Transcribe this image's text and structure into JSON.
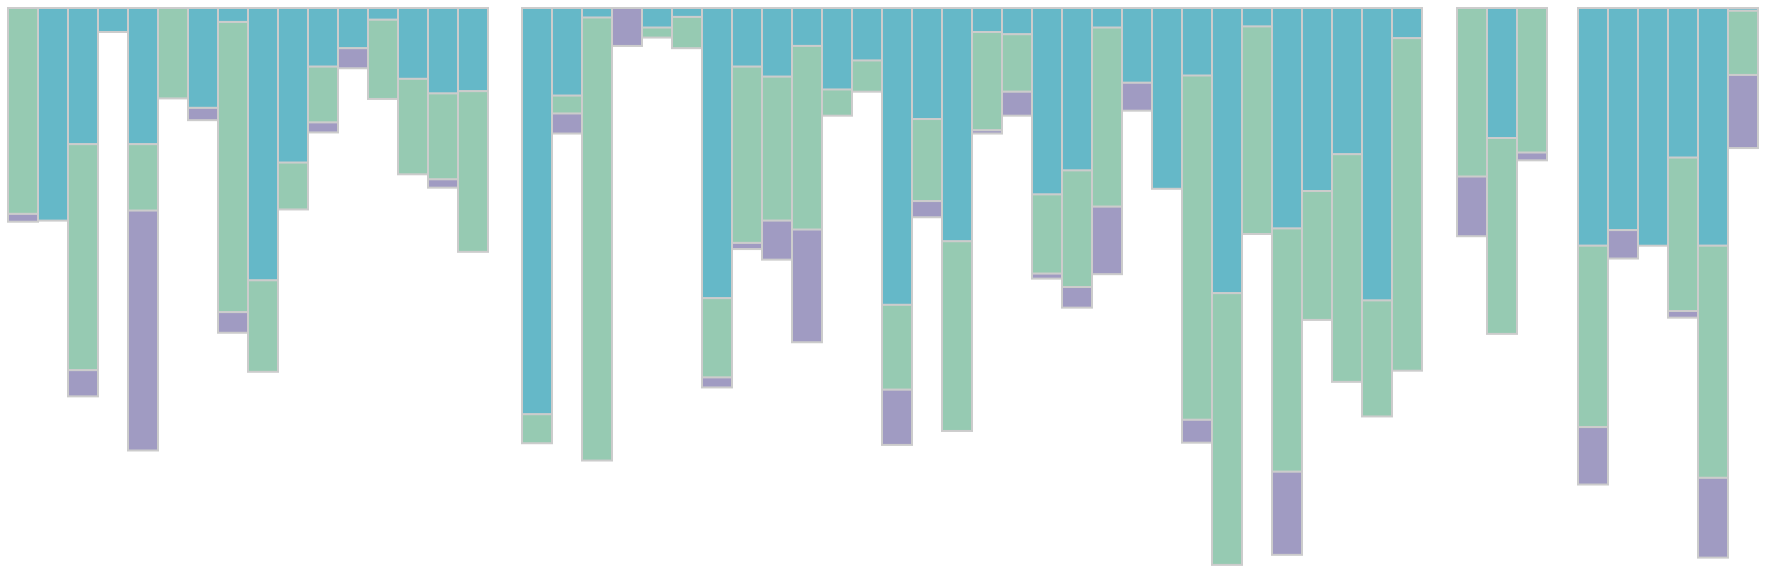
{
  "chart_data": {
    "type": "bar",
    "orientation": "vertical",
    "stacked": true,
    "direction": "downward",
    "title": "",
    "xlabel": "",
    "ylabel": "",
    "ylim": [
      0,
      100
    ],
    "grid": false,
    "legend": "none",
    "colors": {
      "blue": "#65b8c8",
      "green": "#96cab2",
      "purple": "#a09bc2"
    },
    "groups": [
      {
        "bars": [
          {
            "segments": [
              [
                "green",
                36.9
              ],
              [
                "purple",
                1.4
              ]
            ]
          },
          {
            "segments": [
              [
                "blue",
                38.1
              ]
            ]
          },
          {
            "segments": [
              [
                "blue",
                24.4
              ],
              [
                "green",
                40.5
              ],
              [
                "purple",
                4.7
              ]
            ]
          },
          {
            "segments": [
              [
                "blue",
                4.3
              ]
            ]
          },
          {
            "segments": [
              [
                "blue",
                24.4
              ],
              [
                "green",
                11.9
              ],
              [
                "purple",
                43.0
              ]
            ]
          },
          {
            "segments": [
              [
                "green",
                16.2
              ]
            ]
          },
          {
            "segments": [
              [
                "blue",
                17.9
              ],
              [
                "purple",
                2.2
              ]
            ]
          },
          {
            "segments": [
              [
                "blue",
                2.5
              ],
              [
                "green",
                52.0
              ],
              [
                "purple",
                3.7
              ]
            ]
          },
          {
            "segments": [
              [
                "blue",
                48.8
              ],
              [
                "green",
                16.4
              ]
            ]
          },
          {
            "segments": [
              [
                "blue",
                27.7
              ],
              [
                "green",
                8.4
              ]
            ]
          },
          {
            "segments": [
              [
                "blue",
                10.5
              ],
              [
                "green",
                10.0
              ],
              [
                "purple",
                1.8
              ]
            ]
          },
          {
            "segments": [
              [
                "blue",
                7.2
              ],
              [
                "purple",
                3.6
              ]
            ]
          },
          {
            "segments": [
              [
                "blue",
                2.1
              ],
              [
                "green",
                14.2
              ]
            ]
          },
          {
            "segments": [
              [
                "blue",
                12.7
              ],
              [
                "green",
                17.1
              ]
            ]
          },
          {
            "segments": [
              [
                "blue",
                15.3
              ],
              [
                "green",
                15.4
              ],
              [
                "purple",
                1.5
              ]
            ]
          },
          {
            "segments": [
              [
                "blue",
                14.9
              ],
              [
                "green",
                28.8
              ]
            ]
          }
        ]
      },
      {
        "bars": [
          {
            "segments": [
              [
                "blue",
                72.8
              ],
              [
                "green",
                5.2
              ]
            ]
          },
          {
            "segments": [
              [
                "blue",
                15.7
              ],
              [
                "green",
                3.2
              ],
              [
                "purple",
                3.6
              ]
            ]
          },
          {
            "segments": [
              [
                "blue",
                1.7
              ],
              [
                "green",
                79.4
              ]
            ]
          },
          {
            "segments": [
              [
                "purple",
                6.8
              ]
            ]
          },
          {
            "segments": [
              [
                "blue",
                3.5
              ],
              [
                "green",
                1.8
              ]
            ]
          },
          {
            "segments": [
              [
                "blue",
                1.6
              ],
              [
                "green",
                5.6
              ]
            ]
          },
          {
            "segments": [
              [
                "blue",
                52.0
              ],
              [
                "green",
                14.2
              ],
              [
                "purple",
                1.8
              ]
            ]
          },
          {
            "segments": [
              [
                "blue",
                10.5
              ],
              [
                "green",
                31.6
              ],
              [
                "purple",
                1.1
              ]
            ]
          },
          {
            "segments": [
              [
                "blue",
                12.3
              ],
              [
                "green",
                25.8
              ],
              [
                "purple",
                7.0
              ]
            ]
          },
          {
            "segments": [
              [
                "blue",
                6.8
              ],
              [
                "green",
                32.9
              ],
              [
                "purple",
                20.2
              ]
            ]
          },
          {
            "segments": [
              [
                "blue",
                14.6
              ],
              [
                "green",
                4.7
              ]
            ]
          },
          {
            "segments": [
              [
                "blue",
                9.4
              ],
              [
                "green",
                5.6
              ]
            ]
          },
          {
            "segments": [
              [
                "blue",
                53.2
              ],
              [
                "green",
                15.2
              ],
              [
                "purple",
                9.9
              ]
            ]
          },
          {
            "segments": [
              [
                "blue",
                19.9
              ],
              [
                "green",
                14.7
              ],
              [
                "purple",
                2.9
              ]
            ]
          },
          {
            "segments": [
              [
                "blue",
                41.8
              ],
              [
                "green",
                34.0
              ]
            ]
          },
          {
            "segments": [
              [
                "blue",
                4.3
              ],
              [
                "green",
                17.6
              ],
              [
                "purple",
                0.6
              ]
            ]
          },
          {
            "segments": [
              [
                "blue",
                4.7
              ],
              [
                "green",
                10.3
              ],
              [
                "purple",
                4.3
              ]
            ]
          },
          {
            "segments": [
              [
                "blue",
                33.4
              ],
              [
                "green",
                14.2
              ],
              [
                "purple",
                0.9
              ]
            ]
          },
          {
            "segments": [
              [
                "blue",
                29.1
              ],
              [
                "green",
                20.9
              ],
              [
                "purple",
                3.7
              ]
            ]
          },
          {
            "segments": [
              [
                "blue",
                3.5
              ],
              [
                "green",
                32.1
              ],
              [
                "purple",
                12.1
              ]
            ]
          },
          {
            "segments": [
              [
                "blue",
                13.4
              ],
              [
                "purple",
                5.0
              ]
            ]
          },
          {
            "segments": [
              [
                "blue",
                32.4
              ]
            ]
          },
          {
            "segments": [
              [
                "blue",
                12.1
              ],
              [
                "green",
                61.7
              ],
              [
                "purple",
                4.1
              ]
            ]
          },
          {
            "segments": [
              [
                "blue",
                51.1
              ],
              [
                "green",
                48.7
              ]
            ]
          },
          {
            "segments": [
              [
                "blue",
                3.3
              ],
              [
                "green",
                37.2
              ]
            ]
          },
          {
            "segments": [
              [
                "blue",
                39.5
              ],
              [
                "green",
                43.6
              ],
              [
                "purple",
                14.9
              ]
            ]
          },
          {
            "segments": [
              [
                "blue",
                32.8
              ],
              [
                "green",
                23.1
              ]
            ]
          },
          {
            "segments": [
              [
                "blue",
                26.2
              ],
              [
                "green",
                40.8
              ]
            ]
          },
          {
            "segments": [
              [
                "blue",
                52.4
              ],
              [
                "green",
                20.8
              ]
            ]
          },
          {
            "segments": [
              [
                "blue",
                5.4
              ],
              [
                "green",
                59.6
              ]
            ]
          }
        ]
      },
      {
        "bars": [
          {
            "segments": [
              [
                "green",
                30.2
              ],
              [
                "purple",
                10.7
              ]
            ]
          },
          {
            "segments": [
              [
                "blue",
                23.3
              ],
              [
                "green",
                35.1
              ]
            ]
          },
          {
            "segments": [
              [
                "green",
                25.9
              ],
              [
                "purple",
                1.4
              ]
            ]
          }
        ]
      },
      {
        "bars": [
          {
            "segments": [
              [
                "blue",
                42.6
              ],
              [
                "green",
                32.5
              ],
              [
                "purple",
                10.3
              ]
            ]
          },
          {
            "segments": [
              [
                "blue",
                39.8
              ],
              [
                "purple",
                5.1
              ]
            ]
          },
          {
            "segments": [
              [
                "blue",
                42.6
              ]
            ]
          },
          {
            "segments": [
              [
                "blue",
                26.8
              ],
              [
                "green",
                27.5
              ],
              [
                "purple",
                1.2
              ]
            ]
          },
          {
            "segments": [
              [
                "blue",
                42.6
              ],
              [
                "green",
                41.6
              ],
              [
                "purple",
                14.3
              ]
            ]
          },
          {
            "segments": [
              [
                "blue",
                0.5
              ],
              [
                "green",
                11.5
              ],
              [
                "purple",
                13.1
              ]
            ]
          }
        ]
      }
    ]
  }
}
